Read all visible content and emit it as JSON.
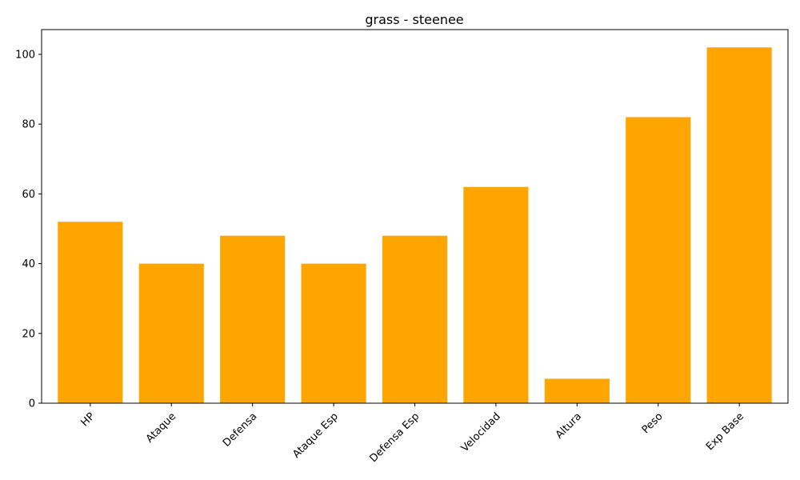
{
  "chart_data": {
    "type": "bar",
    "title": "grass - steenee",
    "xlabel": "",
    "ylabel": "",
    "categories": [
      "HP",
      "Ataque",
      "Defensa",
      "Ataque Esp",
      "Defensa Esp",
      "Velocidad",
      "Altura",
      "Peso",
      "Exp Base"
    ],
    "values": [
      52,
      40,
      48,
      40,
      48,
      62,
      7,
      82,
      102
    ],
    "ylim": [
      0,
      107.1
    ],
    "yticks": [
      0,
      20,
      40,
      60,
      80,
      100
    ],
    "bar_color": "#ffa500",
    "grid": false,
    "legend": "none"
  }
}
